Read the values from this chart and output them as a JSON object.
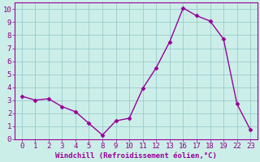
{
  "x_indices": [
    0,
    1,
    2,
    3,
    4,
    5,
    6,
    7,
    8,
    9,
    10,
    11,
    12,
    13,
    14,
    15,
    16,
    17
  ],
  "x_labels": [
    "0",
    "1",
    "2",
    "3",
    "4",
    "5",
    "8",
    "9",
    "10",
    "11",
    "12",
    "13",
    "16",
    "17",
    "18",
    "19",
    "22",
    "23"
  ],
  "y": [
    3.3,
    3.0,
    3.1,
    2.5,
    2.1,
    1.2,
    0.3,
    1.4,
    1.6,
    3.9,
    5.5,
    7.5,
    10.1,
    9.5,
    9.1,
    7.7,
    2.7,
    0.7
  ],
  "yticks": [
    0,
    1,
    2,
    3,
    4,
    5,
    6,
    7,
    8,
    9,
    10
  ],
  "xlim": [
    -0.5,
    17.5
  ],
  "ylim": [
    0,
    10.5
  ],
  "xlabel": "Windchill (Refroidissement éolien,°C)",
  "line_color": "#990099",
  "marker_color": "#990099",
  "bg_color": "#cceee8",
  "grid_color": "#99cccc",
  "axis_label_color": "#990099",
  "tick_label_color": "#880088",
  "spine_color": "#990099",
  "xlabel_fontsize": 6.5,
  "tick_fontsize": 6.5,
  "marker_size": 2.5,
  "line_width": 1.0
}
